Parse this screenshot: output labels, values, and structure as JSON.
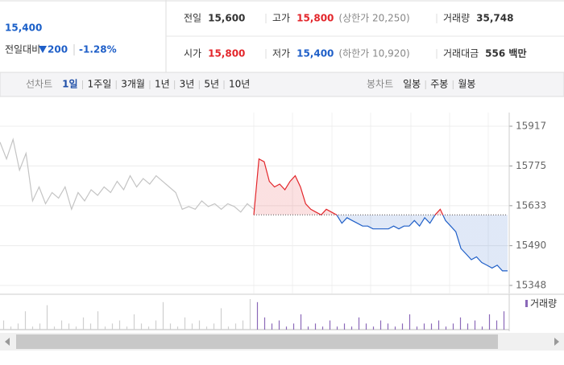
{
  "header": {
    "price": "15,400",
    "change_label": "전일대비",
    "change": "200",
    "change_pct": "-1.28%",
    "stats": [
      {
        "label": "전일",
        "value": "15,600"
      },
      {
        "label": "고가",
        "value": "15,800",
        "note": "(상한가 20,250)"
      },
      {
        "label": "거래량",
        "value": "35,748"
      },
      {
        "label": "시가",
        "value": "15,800"
      },
      {
        "label": "저가",
        "value": "15,400",
        "note": "(하한가 10,920)"
      },
      {
        "label": "거래대금",
        "value": "556 백만"
      }
    ]
  },
  "tabs": {
    "left_label": "선차트",
    "left": [
      "1일",
      "1주일",
      "3개월",
      "1년",
      "3년",
      "5년",
      "10년"
    ],
    "right_label": "봉차트",
    "right": [
      "일봉",
      "주봉",
      "월봉"
    ]
  },
  "chart_data": {
    "type": "line",
    "ylim": [
      15348,
      15917
    ],
    "yticks": [
      15348,
      15490,
      15633,
      15775,
      15917
    ],
    "grid": true,
    "reference": 15600,
    "up_color": "#e3262b",
    "down_color": "#1f5fc8",
    "series": [
      {
        "color": "#c4c4c4",
        "values": [
          15860,
          15800,
          15870,
          15760,
          15820,
          15650,
          15700,
          15640,
          15680,
          15660,
          15700,
          15620,
          15680,
          15650,
          15690,
          15670,
          15700,
          15680,
          15720,
          15690,
          15740,
          15700,
          15730,
          15710,
          15740,
          15720,
          15700,
          15680,
          15620,
          15630,
          15620,
          15650,
          15630,
          15640,
          15620,
          15640,
          15630,
          15610,
          15640,
          15620
        ]
      },
      {
        "values": [
          15600,
          15800,
          15790,
          15720,
          15700,
          15710,
          15690,
          15720,
          15740,
          15700,
          15640,
          15620,
          15610,
          15600,
          15620,
          15610,
          15600,
          15570,
          15590,
          15580,
          15570,
          15560,
          15560,
          15550,
          15550,
          15550,
          15550,
          15560,
          15550,
          15560,
          15560,
          15580,
          15560,
          15590,
          15570,
          15600,
          15620,
          15580,
          15560,
          15540,
          15480,
          15460,
          15440,
          15450,
          15430,
          15420,
          15410,
          15420,
          15400,
          15400
        ]
      }
    ],
    "volume": {
      "legend": "거래량",
      "color": "#8a68b8",
      "prev_color": "#cfcfcf",
      "prev": [
        3,
        1,
        2,
        6,
        1,
        2,
        8,
        1,
        3,
        2,
        1,
        4,
        2,
        6,
        1,
        2,
        3,
        1,
        5,
        2,
        1,
        3,
        9,
        2,
        1,
        4,
        2,
        3,
        1,
        2,
        7,
        1,
        2,
        3,
        10
      ],
      "today": [
        9,
        4,
        2,
        3,
        1,
        2,
        5,
        1,
        2,
        1,
        3,
        1,
        2,
        1,
        4,
        2,
        1,
        3,
        2,
        1,
        2,
        5,
        1,
        2,
        2,
        3,
        1,
        2,
        4,
        2,
        3,
        1,
        5,
        3,
        6
      ]
    }
  }
}
